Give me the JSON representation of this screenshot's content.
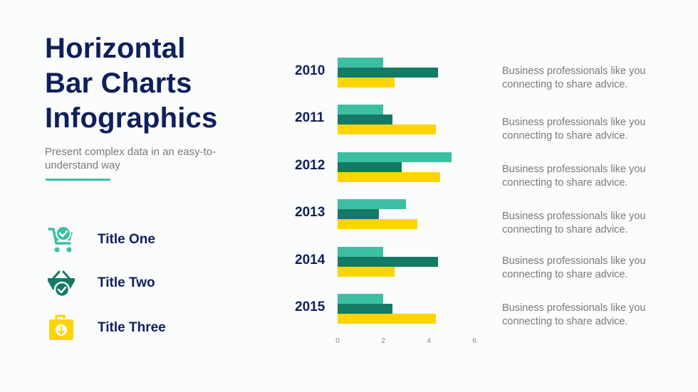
{
  "header": {
    "title_lines": [
      "Horizontal",
      "Bar Charts",
      "Infographics"
    ],
    "subtitle": "Present complex data in an easy-to-understand way"
  },
  "legend": [
    {
      "label": "Title One",
      "icon": "shopping-cart-check-icon",
      "color": "#3cbfa3"
    },
    {
      "label": "Title Two",
      "icon": "basket-check-icon",
      "color": "#137a66"
    },
    {
      "label": "Title Three",
      "icon": "shopping-bag-download-icon",
      "color": "#fdd400"
    }
  ],
  "descriptions": [
    {
      "line1": "Business professionals like you",
      "line2": "connecting to share advice."
    },
    {
      "line1": "Business professionals like you",
      "line2": "connecting to share advice."
    },
    {
      "line1": "Business professionals like you",
      "line2": "connecting to share advice."
    },
    {
      "line1": "Business professionals like you",
      "line2": "connecting to share advice."
    },
    {
      "line1": "Business professionals like you",
      "line2": "connecting to share advice."
    },
    {
      "line1": "Business professionals like you",
      "line2": "connecting to share advice."
    }
  ],
  "colors": {
    "title_one": "#3cbfa3",
    "title_two": "#137a66",
    "title_three": "#fdd400",
    "navy": "#0f1f5c",
    "gray_text": "#7a7a7a"
  },
  "chart_data": {
    "type": "bar",
    "orientation": "horizontal",
    "title": "Horizontal Bar Charts Infographics",
    "categories": [
      "2010",
      "2011",
      "2012",
      "2013",
      "2014",
      "2015"
    ],
    "series": [
      {
        "name": "Title One",
        "color": "#3cbfa3",
        "values": [
          2.0,
          2.0,
          5.0,
          3.0,
          2.0,
          2.0
        ]
      },
      {
        "name": "Title Two",
        "color": "#137a66",
        "values": [
          4.4,
          2.4,
          2.8,
          1.8,
          4.4,
          2.4
        ]
      },
      {
        "name": "Title Three",
        "color": "#fdd400",
        "values": [
          2.5,
          4.3,
          4.5,
          3.5,
          2.5,
          4.3
        ]
      }
    ],
    "xticks": [
      "0",
      "2",
      "4",
      "6"
    ],
    "xlim": [
      0,
      6
    ],
    "xlabel": "",
    "ylabel": "",
    "grid": false,
    "legend_position": "left"
  }
}
